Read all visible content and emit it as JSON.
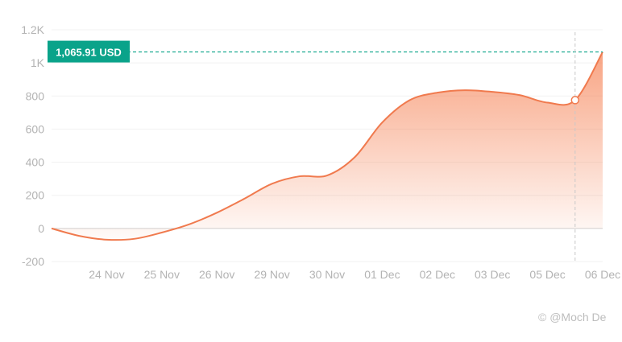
{
  "chart_data": {
    "type": "area",
    "title": "",
    "xlabel": "",
    "ylabel": "",
    "categories": [
      "24 Nov",
      "25 Nov",
      "26 Nov",
      "29 Nov",
      "30 Nov",
      "01 Dec",
      "02 Dec",
      "03 Dec",
      "05 Dec",
      "06 Dec"
    ],
    "x": [
      0,
      0.5,
      1,
      1.5,
      2,
      2.5,
      3,
      3.5,
      4,
      4.5,
      5,
      5.5,
      6,
      6.5,
      7,
      7.5,
      8,
      8.5,
      9,
      9.5,
      10
    ],
    "series": [
      {
        "values": [
          0,
          -45,
          -68,
          -63,
          -25,
          25,
          95,
          180,
          270,
          315,
          320,
          430,
          640,
          775,
          820,
          835,
          825,
          805,
          760,
          775,
          1065.91
        ]
      }
    ],
    "y_ticks": [
      "-200",
      "0",
      "200",
      "400",
      "600",
      "800",
      "1K",
      "1.2K"
    ],
    "ylim": [
      -200,
      1200
    ],
    "grid": true,
    "highlight": {
      "x": 9.5,
      "value": 775
    },
    "current_value": 1065.91,
    "current_label": "1,065.91 USD",
    "colors": {
      "line": "#f07a4e",
      "fill": "#f6865a",
      "badge": "#0aa38a",
      "grid": "#f1f1f1",
      "zero_line": "#cfcfcf"
    }
  },
  "watermark": "© @Moch De"
}
